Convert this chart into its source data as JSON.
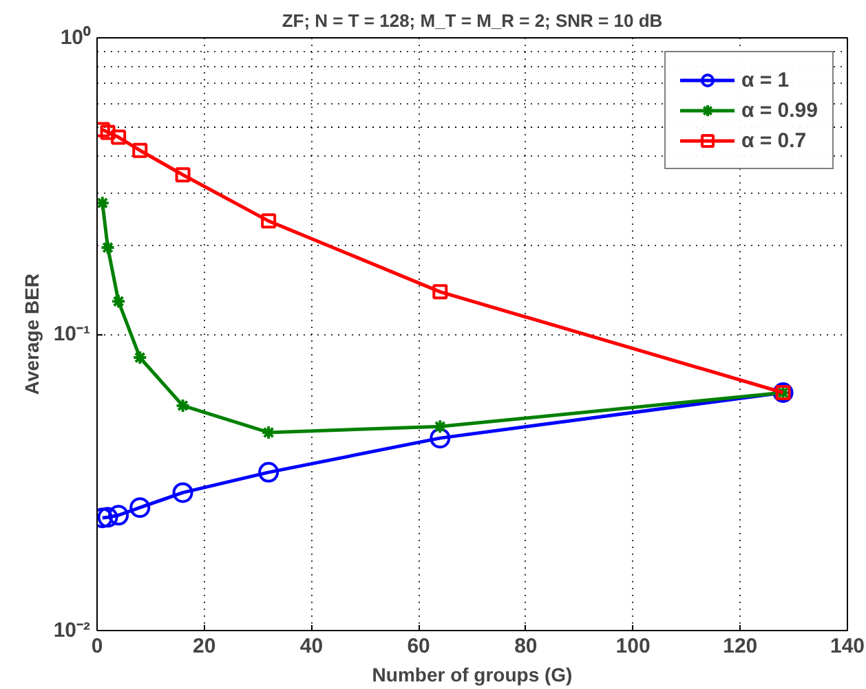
{
  "chart_data": {
    "type": "line",
    "title": "ZF; N = T = 128; M_T = M_R = 2; SNR = 10 dB",
    "xlabel": "Number of groups (G)",
    "ylabel": "Average BER",
    "x": [
      1,
      2,
      4,
      8,
      16,
      32,
      64,
      128
    ],
    "series": [
      {
        "name": "α = 1",
        "color": "#0000ff",
        "marker": "circle",
        "values": [
          0.024,
          0.0241,
          0.0245,
          0.026,
          0.0292,
          0.0342,
          0.0446,
          0.0635
        ]
      },
      {
        "name": "α = 0.99",
        "color": "#008000",
        "marker": "cross",
        "values": [
          0.277,
          0.196,
          0.129,
          0.0834,
          0.0574,
          0.0466,
          0.0488,
          0.0635
        ]
      },
      {
        "name": "α = 0.7",
        "color": "#ff0000",
        "marker": "square",
        "values": [
          0.49,
          0.48,
          0.462,
          0.417,
          0.345,
          0.241,
          0.139,
          0.0635
        ]
      }
    ],
    "log": "y",
    "xlim": [
      0,
      140
    ],
    "xticks": [
      0,
      20,
      40,
      60,
      80,
      100,
      120,
      140
    ],
    "ylim": [
      0.01,
      1
    ],
    "yticks": [
      {
        "value": 0.01,
        "label": "10⁻²"
      },
      {
        "value": 0.1,
        "label": "10⁻¹"
      },
      {
        "value": 1,
        "label": "10⁰"
      }
    ],
    "grid": true,
    "legend": "top right",
    "line_style": "solid"
  }
}
